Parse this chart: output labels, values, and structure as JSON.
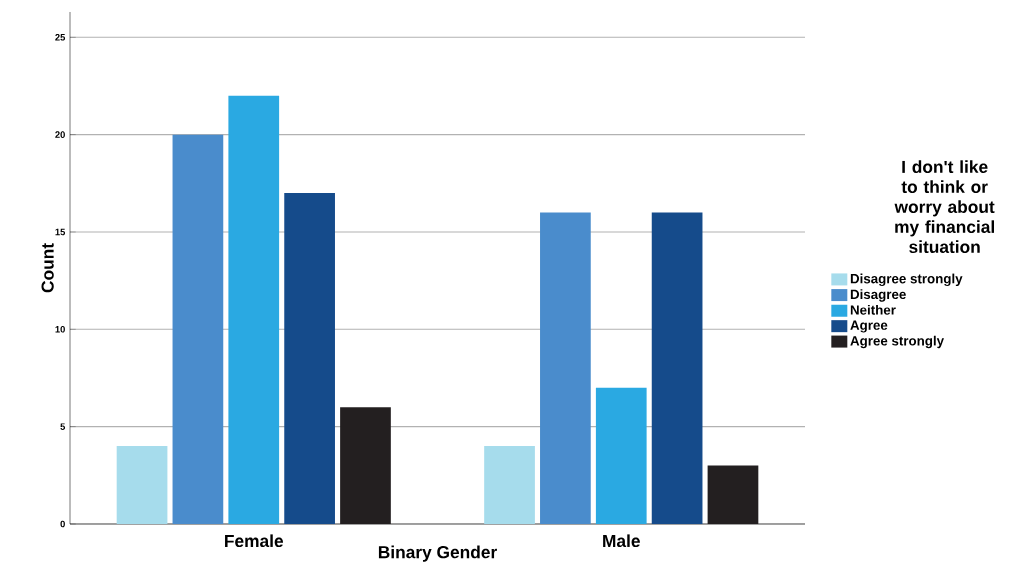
{
  "chart_data": {
    "type": "bar",
    "xlabel": "Binary Gender",
    "ylabel": "Count",
    "legend_title": "I don't like to think or worry about my financial situation",
    "categories": [
      "Female",
      "Male"
    ],
    "series": [
      {
        "name": "Disagree strongly",
        "color": "#a6dcec",
        "values": [
          4,
          4
        ]
      },
      {
        "name": "Disagree",
        "color": "#4a8ccc",
        "values": [
          20,
          16
        ]
      },
      {
        "name": "Neither",
        "color": "#2aa9e2",
        "values": [
          22,
          7
        ]
      },
      {
        "name": "Agree",
        "color": "#154b8b",
        "values": [
          17,
          16
        ]
      },
      {
        "name": "Agree strongly",
        "color": "#231f20",
        "values": [
          6,
          3
        ]
      }
    ],
    "ylim": [
      0,
      26.3
    ],
    "yticks": [
      0,
      5,
      10,
      15,
      20,
      25
    ],
    "grid": "y",
    "legend": "right"
  }
}
